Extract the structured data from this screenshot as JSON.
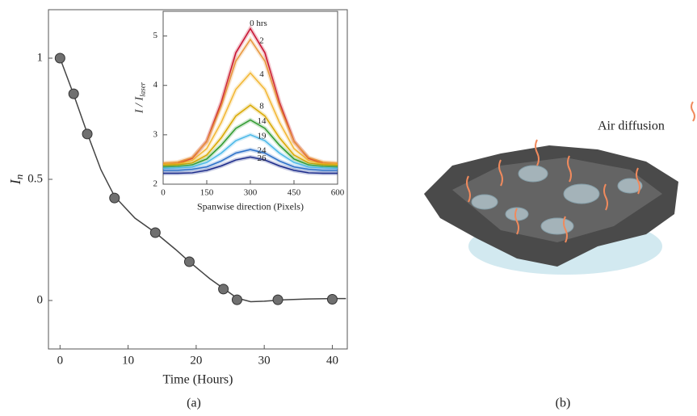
{
  "chart_data": [
    {
      "type": "scatter",
      "xlabel": "Time (Hours)",
      "ylabel": "I",
      "ylabel_subscript": "n",
      "x": [
        0,
        2,
        4,
        8,
        14,
        19,
        24,
        26,
        32,
        40
      ],
      "values": [
        1,
        0.853,
        0.687,
        0.423,
        0.28,
        0.16,
        0.047,
        0.003,
        0.003,
        0.005
      ],
      "color": "#707070",
      "fit": {
        "x": [
          0,
          2,
          4,
          6,
          8,
          11,
          14,
          17,
          19,
          22,
          24,
          26,
          28,
          30,
          33,
          36,
          40,
          42
        ],
        "values": [
          1,
          0.85,
          0.69,
          0.54,
          0.43,
          0.34,
          0.28,
          0.21,
          0.16,
          0.09,
          0.05,
          0.01,
          -0.005,
          -0.003,
          0.003,
          0.006,
          0.008,
          0.008
        ],
        "color": "#444444"
      },
      "xlim": [
        -1.7,
        42.2
      ],
      "ylim": [
        -0.2,
        1.2
      ],
      "xticks": [
        0,
        10,
        20,
        30,
        40
      ],
      "yticks": [
        0,
        0.5,
        1
      ]
    },
    {
      "type": "line",
      "xlabel": "Spanwise direction (Pixels)",
      "ylabel": "I / I",
      "ylabel_subscript": "laser",
      "x": [
        0,
        50,
        100,
        150,
        200,
        250,
        300,
        350,
        400,
        450,
        500,
        550,
        600
      ],
      "series": [
        {
          "name": "0 hrs",
          "color": "#c8102e",
          "values": [
            2.4,
            2.42,
            2.52,
            2.87,
            3.66,
            4.66,
            5.15,
            4.66,
            3.66,
            2.87,
            2.52,
            2.42,
            2.4
          ]
        },
        {
          "name": "2",
          "color": "#e8963c",
          "values": [
            2.43,
            2.45,
            2.54,
            2.86,
            3.58,
            4.49,
            4.93,
            4.49,
            3.58,
            2.86,
            2.54,
            2.45,
            2.43
          ]
        },
        {
          "name": "4",
          "color": "#f2b632",
          "values": [
            2.4,
            2.41,
            2.48,
            2.72,
            3.25,
            3.92,
            4.25,
            3.92,
            3.25,
            2.72,
            2.48,
            2.41,
            2.4
          ]
        },
        {
          "name": "8",
          "color": "#d9a800",
          "values": [
            2.38,
            2.39,
            2.43,
            2.59,
            2.94,
            3.38,
            3.6,
            3.38,
            2.94,
            2.59,
            2.43,
            2.39,
            2.38
          ]
        },
        {
          "name": "14",
          "color": "#2e9a2e",
          "values": [
            2.35,
            2.36,
            2.39,
            2.51,
            2.79,
            3.13,
            3.3,
            3.13,
            2.79,
            2.51,
            2.39,
            2.36,
            2.35
          ]
        },
        {
          "name": "19",
          "color": "#4ab8e8",
          "values": [
            2.32,
            2.33,
            2.35,
            2.44,
            2.63,
            2.88,
            3.0,
            2.88,
            2.63,
            2.44,
            2.35,
            2.33,
            2.32
          ]
        },
        {
          "name": "24",
          "color": "#2a6fc8",
          "values": [
            2.28,
            2.28,
            2.3,
            2.35,
            2.47,
            2.63,
            2.7,
            2.63,
            2.47,
            2.35,
            2.3,
            2.28,
            2.28
          ]
        },
        {
          "name": "26",
          "color": "#1a2a8a",
          "values": [
            2.22,
            2.22,
            2.23,
            2.28,
            2.37,
            2.49,
            2.55,
            2.49,
            2.37,
            2.28,
            2.23,
            2.22,
            2.22
          ]
        }
      ],
      "xlim": [
        0,
        600
      ],
      "ylim": [
        2,
        5.5
      ],
      "xticks": [
        0,
        150,
        300,
        450,
        600
      ],
      "yticks": [
        2,
        3,
        4,
        5
      ]
    }
  ],
  "labels": [
    "(a)",
    "(b)"
  ],
  "illustration": {
    "annotation": "Air diffusion"
  }
}
